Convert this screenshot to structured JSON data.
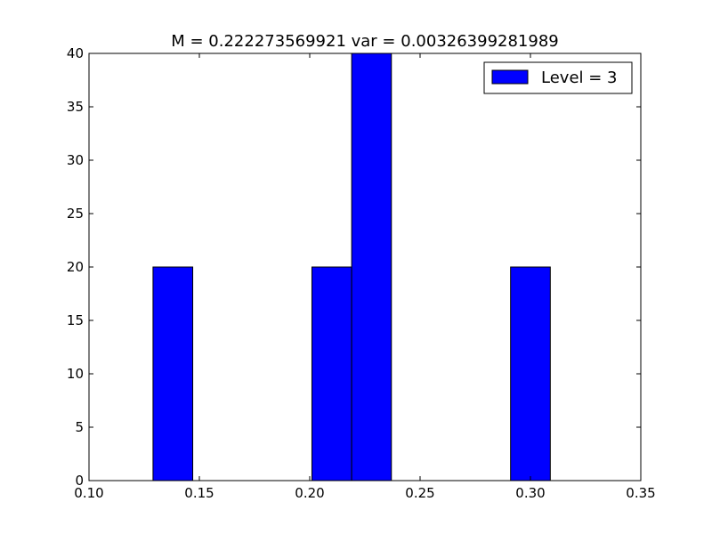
{
  "chart_data": {
    "type": "bar",
    "title": "M = 0.222273569921 var = 0.00326399281989",
    "xlabel": "",
    "ylabel": "",
    "xlim": [
      0.1,
      0.35
    ],
    "ylim": [
      0,
      40
    ],
    "xticks": [
      "0.10",
      "0.15",
      "0.20",
      "0.25",
      "0.30",
      "0.35"
    ],
    "yticks": [
      "0",
      "5",
      "10",
      "15",
      "20",
      "25",
      "30",
      "35",
      "40"
    ],
    "grid": false,
    "legend_position": "top-right",
    "series": [
      {
        "name": "Level = 3",
        "color": "#0000ff",
        "bars": [
          {
            "x0": 0.129,
            "x1": 0.147,
            "value": 20
          },
          {
            "x0": 0.201,
            "x1": 0.219,
            "value": 20
          },
          {
            "x0": 0.219,
            "x1": 0.237,
            "value": 40
          },
          {
            "x0": 0.291,
            "x1": 0.309,
            "value": 20
          }
        ]
      }
    ]
  }
}
